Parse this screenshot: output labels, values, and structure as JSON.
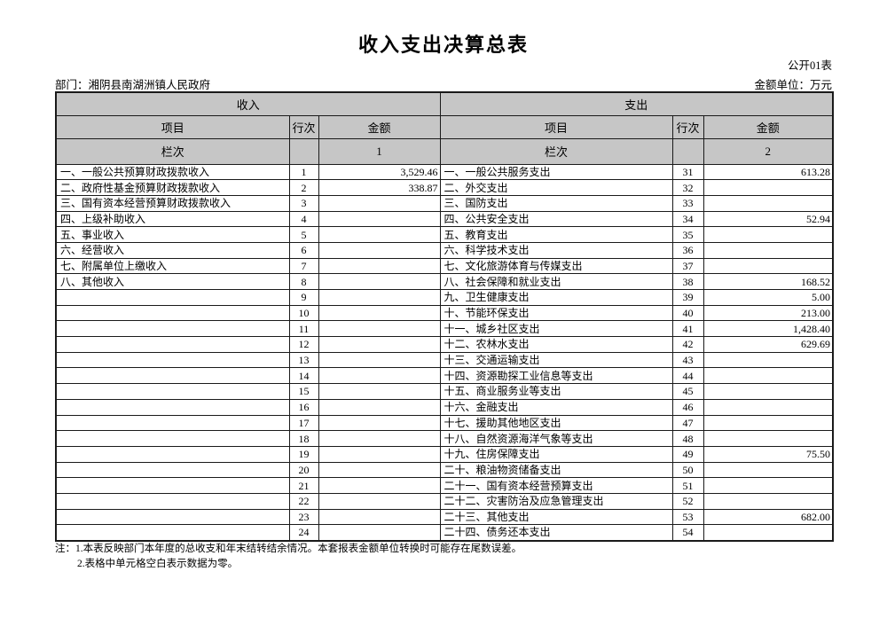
{
  "page": {
    "title": "收入支出决算总表",
    "table_code": "公开01表",
    "department": "部门：湘阴县南湖洲镇人民政府",
    "unit": "金额单位：万元",
    "notes": {
      "note_1": "注：1.本表反映部门本年度的总收支和年末结转结余情况。本套报表金额单位转换时可能存在尾数误差。",
      "note_2": "2.表格中单元格空白表示数据为零。"
    }
  },
  "colors": {
    "header_bg": "#c6c6c6",
    "border": "#1a1a1a",
    "page_bg": "#ffffff",
    "text": "#000000"
  },
  "table": {
    "section_headers": {
      "income": "收入",
      "expense": "支出"
    },
    "column_headers": {
      "item": "项目",
      "line": "行次",
      "amount": "金额"
    },
    "column_index_row": {
      "label": "栏次",
      "income_col": "1",
      "expense_col": "2"
    },
    "rows": [
      {
        "income_item": "一、一般公共预算财政拨款收入",
        "income_line": "1",
        "income_amount": "3,529.46",
        "expense_item": "一、一般公共服务支出",
        "expense_line": "31",
        "expense_amount": "613.28"
      },
      {
        "income_item": "二、政府性基金预算财政拨款收入",
        "income_line": "2",
        "income_amount": "338.87",
        "expense_item": "二、外交支出",
        "expense_line": "32",
        "expense_amount": ""
      },
      {
        "income_item": "三、国有资本经营预算财政拨款收入",
        "income_line": "3",
        "income_amount": "",
        "expense_item": "三、国防支出",
        "expense_line": "33",
        "expense_amount": ""
      },
      {
        "income_item": "四、上级补助收入",
        "income_line": "4",
        "income_amount": "",
        "expense_item": "四、公共安全支出",
        "expense_line": "34",
        "expense_amount": "52.94"
      },
      {
        "income_item": "五、事业收入",
        "income_line": "5",
        "income_amount": "",
        "expense_item": "五、教育支出",
        "expense_line": "35",
        "expense_amount": ""
      },
      {
        "income_item": "六、经营收入",
        "income_line": "6",
        "income_amount": "",
        "expense_item": "六、科学技术支出",
        "expense_line": "36",
        "expense_amount": ""
      },
      {
        "income_item": "七、附属单位上缴收入",
        "income_line": "7",
        "income_amount": "",
        "expense_item": "七、文化旅游体育与传媒支出",
        "expense_line": "37",
        "expense_amount": ""
      },
      {
        "income_item": "八、其他收入",
        "income_line": "8",
        "income_amount": "",
        "expense_item": "八、社会保障和就业支出",
        "expense_line": "38",
        "expense_amount": "168.52"
      },
      {
        "income_item": "",
        "income_line": "9",
        "income_amount": "",
        "expense_item": "九、卫生健康支出",
        "expense_line": "39",
        "expense_amount": "5.00"
      },
      {
        "income_item": "",
        "income_line": "10",
        "income_amount": "",
        "expense_item": "十、节能环保支出",
        "expense_line": "40",
        "expense_amount": "213.00"
      },
      {
        "income_item": "",
        "income_line": "11",
        "income_amount": "",
        "expense_item": "十一、城乡社区支出",
        "expense_line": "41",
        "expense_amount": "1,428.40"
      },
      {
        "income_item": "",
        "income_line": "12",
        "income_amount": "",
        "expense_item": "十二、农林水支出",
        "expense_line": "42",
        "expense_amount": "629.69"
      },
      {
        "income_item": "",
        "income_line": "13",
        "income_amount": "",
        "expense_item": "十三、交通运输支出",
        "expense_line": "43",
        "expense_amount": ""
      },
      {
        "income_item": "",
        "income_line": "14",
        "income_amount": "",
        "expense_item": "十四、资源勘探工业信息等支出",
        "expense_line": "44",
        "expense_amount": ""
      },
      {
        "income_item": "",
        "income_line": "15",
        "income_amount": "",
        "expense_item": "十五、商业服务业等支出",
        "expense_line": "45",
        "expense_amount": ""
      },
      {
        "income_item": "",
        "income_line": "16",
        "income_amount": "",
        "expense_item": "十六、金融支出",
        "expense_line": "46",
        "expense_amount": ""
      },
      {
        "income_item": "",
        "income_line": "17",
        "income_amount": "",
        "expense_item": "十七、援助其他地区支出",
        "expense_line": "47",
        "expense_amount": ""
      },
      {
        "income_item": "",
        "income_line": "18",
        "income_amount": "",
        "expense_item": "十八、自然资源海洋气象等支出",
        "expense_line": "48",
        "expense_amount": ""
      },
      {
        "income_item": "",
        "income_line": "19",
        "income_amount": "",
        "expense_item": "十九、住房保障支出",
        "expense_line": "49",
        "expense_amount": "75.50"
      },
      {
        "income_item": "",
        "income_line": "20",
        "income_amount": "",
        "expense_item": "二十、粮油物资储备支出",
        "expense_line": "50",
        "expense_amount": ""
      },
      {
        "income_item": "",
        "income_line": "21",
        "income_amount": "",
        "expense_item": "二十一、国有资本经营预算支出",
        "expense_line": "51",
        "expense_amount": ""
      },
      {
        "income_item": "",
        "income_line": "22",
        "income_amount": "",
        "expense_item": "二十二、灾害防治及应急管理支出",
        "expense_line": "52",
        "expense_amount": ""
      },
      {
        "income_item": "",
        "income_line": "23",
        "income_amount": "",
        "expense_item": "二十三、其他支出",
        "expense_line": "53",
        "expense_amount": "682.00"
      },
      {
        "income_item": "",
        "income_line": "24",
        "income_amount": "",
        "expense_item": "二十四、债务还本支出",
        "expense_line": "54",
        "expense_amount": ""
      }
    ]
  }
}
